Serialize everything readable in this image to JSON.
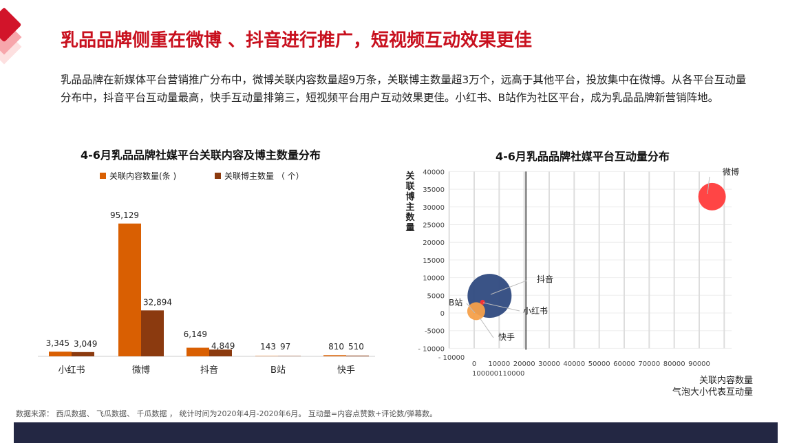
{
  "title": "乳品品牌侧重在微博 、抖音进行推广，短视频互动效果更佳",
  "description": "乳品品牌在新媒体平台营销推广分布中，微博关联内容数量超9万条，关联博主数量超3万个，远高于其他平台，投放集中在微博。从各平台互动量分布中，抖音平台互动量最高，快手互动量排第三，短视频平台用户互动效果更佳。小红书、B站作为社区平台，成为乳品品牌新营销阵地。",
  "source": "数据来源：  西瓜数据、  飞瓜数据、  千瓜数据 ，  统计时间为2020年4月-2020年6月。  互动量=内容点赞数+评论数/弹幕数。",
  "colors": {
    "title": "#c8101e",
    "content": "#d95f02",
    "bloggers": "#8b3a0f",
    "footer": "#232743"
  },
  "chart_data": [
    {
      "type": "bar",
      "title": "4-6月乳品品牌社媒平台关联内容及博主数量分布",
      "categories": [
        "小红书",
        "微博",
        "抖音",
        "B站",
        "快手"
      ],
      "series": [
        {
          "name": "关联内容数量(条 )",
          "values": [
            3345,
            95129,
            6149,
            143,
            810
          ],
          "labels": [
            "3,345",
            "95,129",
            "6,149",
            "143",
            "810"
          ]
        },
        {
          "name": "关联博主数量  （ 个）",
          "values": [
            3049,
            32894,
            4849,
            97,
            510
          ],
          "labels": [
            "3,049",
            "32,894",
            "4,849",
            "97",
            "510"
          ]
        }
      ],
      "legend": "top"
    },
    {
      "type": "scatter",
      "title": "4-6月乳品品牌社媒平台互动量分布",
      "xlabel": "关联内容数量",
      "xlabel2": "气泡大小代表互动量",
      "ylabel": "关联博主数量",
      "xticks": [
        "- 10000",
        "0",
        "10000",
        "20000",
        "30000",
        "40000",
        "50000",
        "60000",
        "70000",
        "80000",
        "90000"
      ],
      "xtick_extra": "100000110000",
      "yticks": [
        "40000",
        "35000",
        "30000",
        "25000",
        "20000",
        "15000",
        "10000",
        "5000",
        "0",
        "-5000",
        "- 10000"
      ],
      "xlim": [
        -10000,
        103000
      ],
      "ylim": [
        -10000,
        40000
      ],
      "points": [
        {
          "name": "微博",
          "x": 95129,
          "y": 32894,
          "color": "#ff3b3b"
        },
        {
          "name": "抖音",
          "x": 6149,
          "y": 4849,
          "color": "#2f4a80"
        },
        {
          "name": "快手",
          "x": 810,
          "y": 510,
          "color": "#f5a04a"
        },
        {
          "name": "小红书",
          "x": 3345,
          "y": 3049,
          "color": "#ff3030"
        },
        {
          "name": "B站",
          "x": 143,
          "y": 97,
          "color": "#f5a04a"
        }
      ],
      "grid": true
    }
  ]
}
